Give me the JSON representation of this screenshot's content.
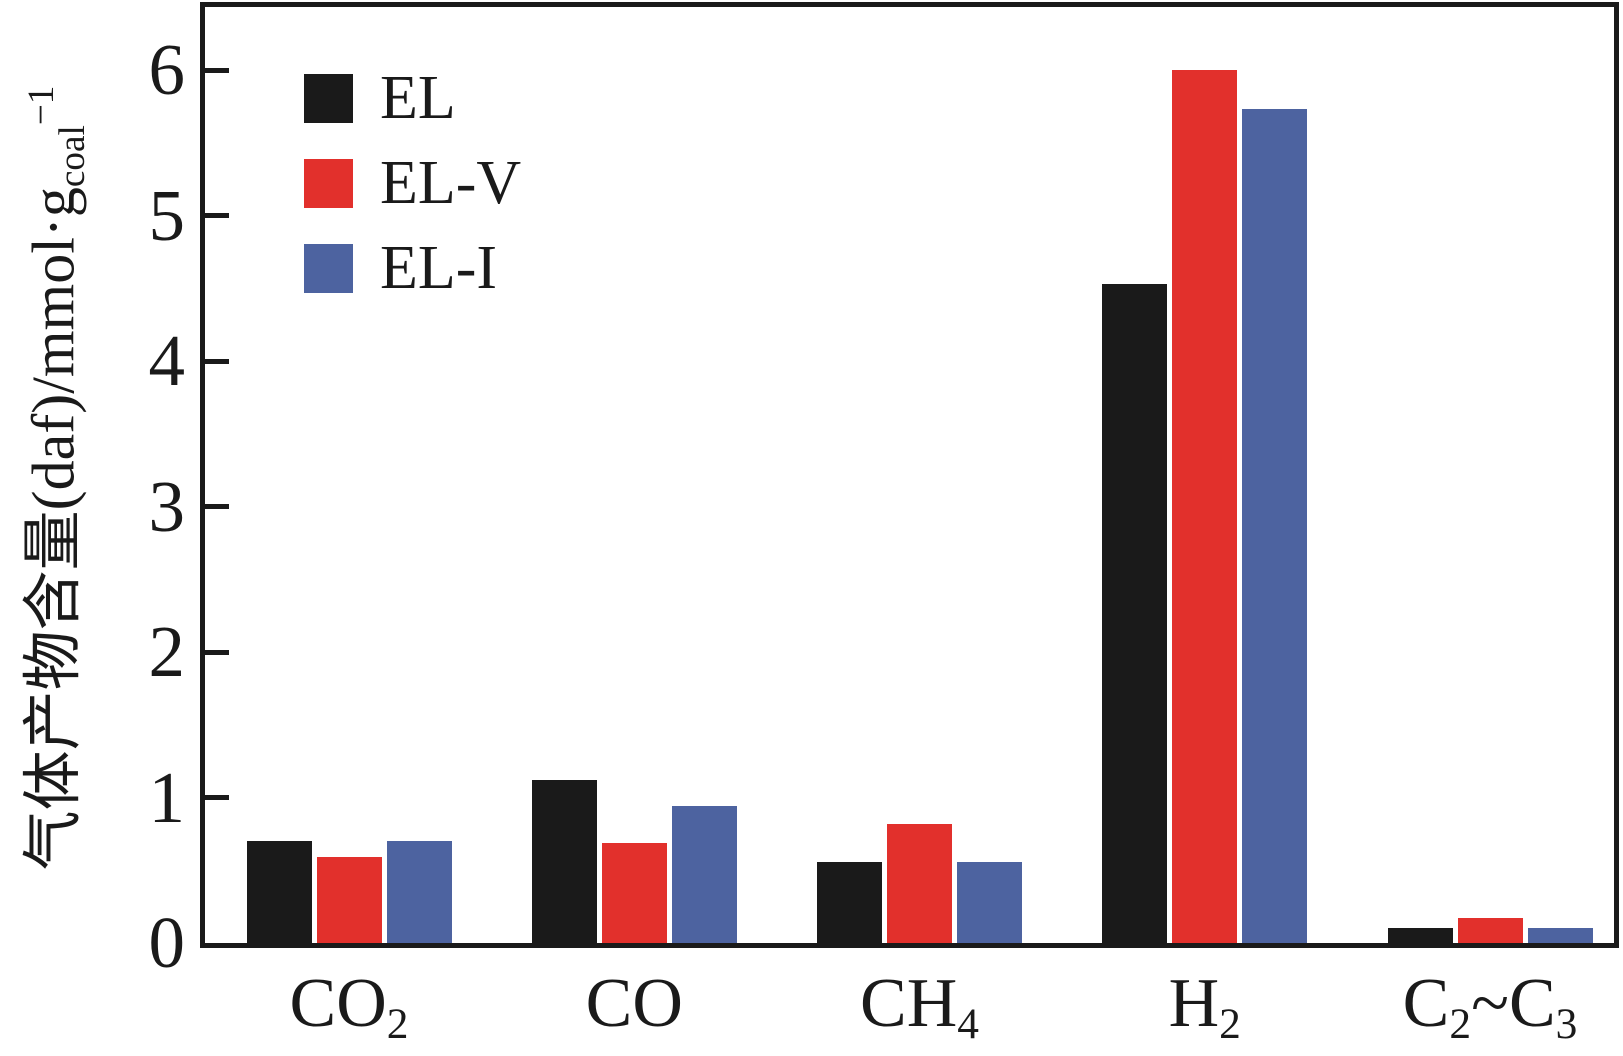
{
  "figure": {
    "background": "#ffffff",
    "axis_color": "#1a1a1a"
  },
  "legend": {
    "position": "top-left",
    "items": [
      {
        "label": "EL",
        "color": "#1a1a1a"
      },
      {
        "label": "EL-V",
        "color": "#e2302c"
      },
      {
        "label": "EL-I",
        "color": "#4d63a0"
      }
    ]
  },
  "chart_data": {
    "type": "bar",
    "title": "",
    "xlabel": "",
    "ylabel": "气体产物含量(daf)/mmol·g_coal^-1",
    "ylabel_segments": [
      {
        "t": "气体产物含量(daf)/mmol·g"
      },
      {
        "t": "coal",
        "sub": true
      },
      {
        "t": "−1",
        "sup": true
      }
    ],
    "categories": [
      "CO2",
      "CO",
      "CH4",
      "H2",
      "C2~C3"
    ],
    "category_segments": [
      [
        {
          "t": "CO"
        },
        {
          "t": "2",
          "sub": true
        }
      ],
      [
        {
          "t": "CO"
        }
      ],
      [
        {
          "t": "CH"
        },
        {
          "t": "4",
          "sub": true
        }
      ],
      [
        {
          "t": "H"
        },
        {
          "t": "2",
          "sub": true
        }
      ],
      [
        {
          "t": "C"
        },
        {
          "t": "2",
          "sub": true
        },
        {
          "t": "~"
        },
        {
          "t": "C"
        },
        {
          "t": "3",
          "sub": true
        }
      ]
    ],
    "series": [
      {
        "name": "EL",
        "color": "#1a1a1a",
        "values": [
          0.7,
          1.12,
          0.56,
          4.53,
          0.1
        ]
      },
      {
        "name": "EL-V",
        "color": "#e2302c",
        "values": [
          0.59,
          0.69,
          0.82,
          6.0,
          0.17
        ]
      },
      {
        "name": "EL-I",
        "color": "#4d63a0",
        "values": [
          0.7,
          0.94,
          0.56,
          5.73,
          0.1
        ]
      }
    ],
    "yticks": [
      "0",
      "1",
      "2",
      "3",
      "4",
      "5",
      "6"
    ],
    "ylim": [
      0,
      6.48
    ],
    "grid": false,
    "legend_position": "top-left"
  }
}
